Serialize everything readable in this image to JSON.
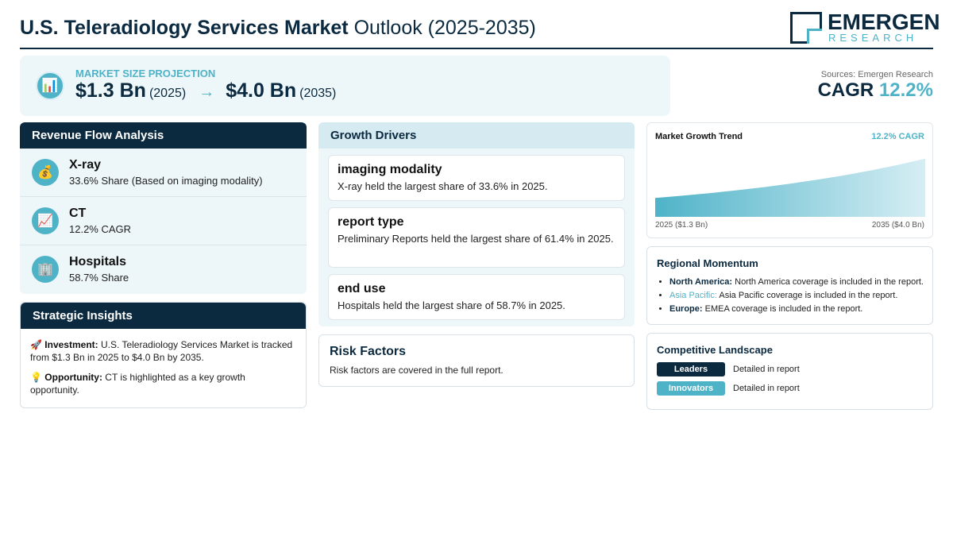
{
  "header": {
    "title_bold": "U.S. Teleradiology Services Market",
    "title_light": "Outlook (2025-2035)",
    "logo_name": "EMERGEN",
    "logo_sub": "RESEARCH"
  },
  "projection": {
    "icon": "bar-chart-icon",
    "label": "MARKET SIZE PROJECTION",
    "start_value": "$1.3 Bn",
    "start_year": "(2025)",
    "arrow": "→",
    "end_value": "$4.0 Bn",
    "end_year": "(2035)"
  },
  "sources": "Sources: Emergen Research",
  "cagr": {
    "label": "CAGR",
    "value": "12.2%"
  },
  "revenue": {
    "heading": "Revenue Flow Analysis",
    "items": [
      {
        "icon": "money-bag-icon",
        "glyph": "💰",
        "title": "X-ray",
        "sub": "33.6% Share (Based on imaging modality)"
      },
      {
        "icon": "trend-chart-icon",
        "glyph": "📈",
        "title": "CT",
        "sub": "12.2% CAGR"
      },
      {
        "icon": "hospital-building-icon",
        "glyph": "🏢",
        "title": "Hospitals",
        "sub": "58.7% Share"
      }
    ]
  },
  "insights": {
    "heading": "Strategic Insights",
    "items": [
      {
        "glyph": "🚀",
        "label": "Investment:",
        "text": "U.S. Teleradiology Services Market is tracked from $1.3 Bn in 2025 to $4.0 Bn by 2035."
      },
      {
        "glyph": "💡",
        "label": "Opportunity:",
        "text": "CT is highlighted as a key growth opportunity."
      }
    ]
  },
  "drivers": {
    "heading": "Growth Drivers",
    "items": [
      {
        "title": "imaging modality",
        "text": "X-ray held the largest share of 33.6% in 2025."
      },
      {
        "title": "report type",
        "text": "Preliminary Reports held the largest share of 61.4% in 2025."
      },
      {
        "title": "end use",
        "text": "Hospitals held the largest share of 58.7% in 2025."
      }
    ]
  },
  "risk": {
    "title": "Risk Factors",
    "text": "Risk factors are covered in the full report."
  },
  "trend": {
    "title": "Market Growth Trend",
    "cagr": "12.2% CAGR",
    "start_label": "2025 ($1.3 Bn)",
    "end_label": "2035 ($4.0 Bn)"
  },
  "chart_data": {
    "type": "area",
    "title": "Market Growth Trend",
    "x": [
      2025,
      2035
    ],
    "values": [
      1.3,
      4.0
    ],
    "annotation": "12.2% CAGR",
    "grid": false
  },
  "regional": {
    "heading": "Regional Momentum",
    "items": [
      {
        "region": "North America:",
        "text": "North America coverage is included in the report."
      },
      {
        "region": "Asia Pacific:",
        "text": "Asia Pacific coverage is included in the report."
      },
      {
        "region": "Europe:",
        "text": "EMEA coverage is included in the report."
      }
    ]
  },
  "competitive": {
    "heading": "Competitive Landscape",
    "items": [
      {
        "badge": "Leaders",
        "text": "Detailed in report"
      },
      {
        "badge": "Innovators",
        "text": "Detailed in report"
      }
    ]
  },
  "colors": {
    "navy": "#0b2a40",
    "teal": "#4fb3c8",
    "panel": "#edf6f9"
  }
}
